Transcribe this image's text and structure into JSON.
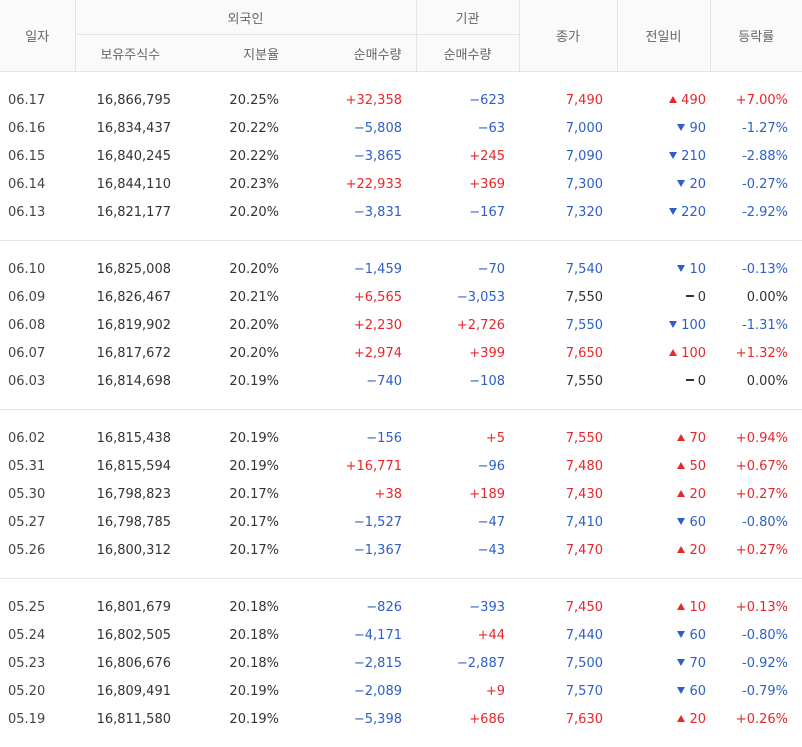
{
  "header": {
    "date": "일자",
    "foreign": "외국인",
    "institution": "기관",
    "close": "종가",
    "change": "전일비",
    "rate": "등락률",
    "holdings": "보유주식수",
    "ratio": "지분율",
    "foreign_net": "순매수량",
    "inst_net": "순매수량"
  },
  "colors": {
    "up": "#e8262c",
    "down": "#2e5fc7",
    "flat": "#333333"
  },
  "groups": [
    [
      {
        "date": "06.17",
        "holdings": "16,866,795",
        "ratio": "20.25%",
        "foreign_net": "+32,358",
        "inst_net": "−623",
        "close": "7,490",
        "dir": "up",
        "change": "490",
        "rate": "+7.00%"
      },
      {
        "date": "06.16",
        "holdings": "16,834,437",
        "ratio": "20.22%",
        "foreign_net": "−5,808",
        "inst_net": "−63",
        "close": "7,000",
        "dir": "down",
        "change": "90",
        "rate": "-1.27%"
      },
      {
        "date": "06.15",
        "holdings": "16,840,245",
        "ratio": "20.22%",
        "foreign_net": "−3,865",
        "inst_net": "+245",
        "close": "7,090",
        "dir": "down",
        "change": "210",
        "rate": "-2.88%"
      },
      {
        "date": "06.14",
        "holdings": "16,844,110",
        "ratio": "20.23%",
        "foreign_net": "+22,933",
        "inst_net": "+369",
        "close": "7,300",
        "dir": "down",
        "change": "20",
        "rate": "-0.27%"
      },
      {
        "date": "06.13",
        "holdings": "16,821,177",
        "ratio": "20.20%",
        "foreign_net": "−3,831",
        "inst_net": "−167",
        "close": "7,320",
        "dir": "down",
        "change": "220",
        "rate": "-2.92%"
      }
    ],
    [
      {
        "date": "06.10",
        "holdings": "16,825,008",
        "ratio": "20.20%",
        "foreign_net": "−1,459",
        "inst_net": "−70",
        "close": "7,540",
        "dir": "down",
        "change": "10",
        "rate": "-0.13%"
      },
      {
        "date": "06.09",
        "holdings": "16,826,467",
        "ratio": "20.21%",
        "foreign_net": "+6,565",
        "inst_net": "−3,053",
        "close": "7,550",
        "dir": "flat",
        "change": "0",
        "rate": "0.00%"
      },
      {
        "date": "06.08",
        "holdings": "16,819,902",
        "ratio": "20.20%",
        "foreign_net": "+2,230",
        "inst_net": "+2,726",
        "close": "7,550",
        "dir": "down",
        "change": "100",
        "rate": "-1.31%"
      },
      {
        "date": "06.07",
        "holdings": "16,817,672",
        "ratio": "20.20%",
        "foreign_net": "+2,974",
        "inst_net": "+399",
        "close": "7,650",
        "dir": "up",
        "change": "100",
        "rate": "+1.32%"
      },
      {
        "date": "06.03",
        "holdings": "16,814,698",
        "ratio": "20.19%",
        "foreign_net": "−740",
        "inst_net": "−108",
        "close": "7,550",
        "dir": "flat",
        "change": "0",
        "rate": "0.00%"
      }
    ],
    [
      {
        "date": "06.02",
        "holdings": "16,815,438",
        "ratio": "20.19%",
        "foreign_net": "−156",
        "inst_net": "+5",
        "close": "7,550",
        "dir": "up",
        "change": "70",
        "rate": "+0.94%"
      },
      {
        "date": "05.31",
        "holdings": "16,815,594",
        "ratio": "20.19%",
        "foreign_net": "+16,771",
        "inst_net": "−96",
        "close": "7,480",
        "dir": "up",
        "change": "50",
        "rate": "+0.67%"
      },
      {
        "date": "05.30",
        "holdings": "16,798,823",
        "ratio": "20.17%",
        "foreign_net": "+38",
        "inst_net": "+189",
        "close": "7,430",
        "dir": "up",
        "change": "20",
        "rate": "+0.27%"
      },
      {
        "date": "05.27",
        "holdings": "16,798,785",
        "ratio": "20.17%",
        "foreign_net": "−1,527",
        "inst_net": "−47",
        "close": "7,410",
        "dir": "down",
        "change": "60",
        "rate": "-0.80%"
      },
      {
        "date": "05.26",
        "holdings": "16,800,312",
        "ratio": "20.17%",
        "foreign_net": "−1,367",
        "inst_net": "−43",
        "close": "7,470",
        "dir": "up",
        "change": "20",
        "rate": "+0.27%"
      }
    ],
    [
      {
        "date": "05.25",
        "holdings": "16,801,679",
        "ratio": "20.18%",
        "foreign_net": "−826",
        "inst_net": "−393",
        "close": "7,450",
        "dir": "up",
        "change": "10",
        "rate": "+0.13%"
      },
      {
        "date": "05.24",
        "holdings": "16,802,505",
        "ratio": "20.18%",
        "foreign_net": "−4,171",
        "inst_net": "+44",
        "close": "7,440",
        "dir": "down",
        "change": "60",
        "rate": "-0.80%"
      },
      {
        "date": "05.23",
        "holdings": "16,806,676",
        "ratio": "20.18%",
        "foreign_net": "−2,815",
        "inst_net": "−2,887",
        "close": "7,500",
        "dir": "down",
        "change": "70",
        "rate": "-0.92%"
      },
      {
        "date": "05.20",
        "holdings": "16,809,491",
        "ratio": "20.19%",
        "foreign_net": "−2,089",
        "inst_net": "+9",
        "close": "7,570",
        "dir": "down",
        "change": "60",
        "rate": "-0.79%"
      },
      {
        "date": "05.19",
        "holdings": "16,811,580",
        "ratio": "20.19%",
        "foreign_net": "−5,398",
        "inst_net": "+686",
        "close": "7,630",
        "dir": "up",
        "change": "20",
        "rate": "+0.26%"
      }
    ]
  ]
}
